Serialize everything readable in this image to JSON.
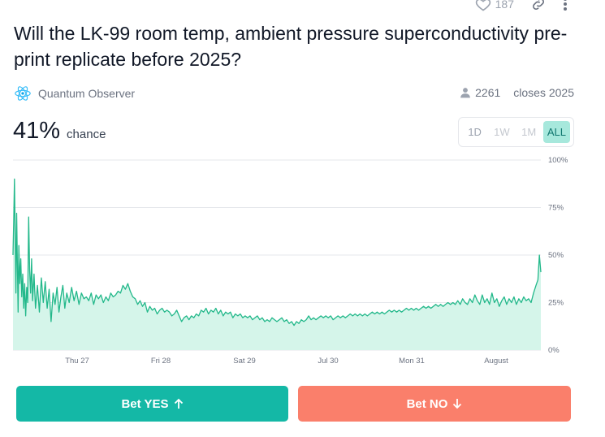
{
  "header": {
    "likes_count": "187",
    "icons": {
      "likes": "heart-icon",
      "share": "link-icon",
      "more": "more-vertical-icon"
    }
  },
  "market": {
    "title": "Will the LK-99 room temp, ambient pressure superconductivity pre-print replicate before 2025?",
    "creator": "Quantum Observer",
    "creator_icon": "atom-icon",
    "traders_count": "2261",
    "closes_text": "closes 2025",
    "probability": "41%",
    "probability_label": "chance"
  },
  "time_ranges": [
    {
      "label": "1D",
      "active": false
    },
    {
      "label": "1W",
      "active": false
    },
    {
      "label": "1M",
      "active": false
    },
    {
      "label": "ALL",
      "active": true
    }
  ],
  "colors": {
    "accent": "#14b8a6",
    "line": "#22b88a",
    "fill": "#d5f5ea",
    "yes_button": "#14b8a6",
    "no_button": "#fa7f6b"
  },
  "chart_data": {
    "type": "area",
    "x_ticks": [
      "Thu 27",
      "Fri 28",
      "Sat 29",
      "Jul 30",
      "Mon 31",
      "August"
    ],
    "y_ticks": [
      "100%",
      "75%",
      "50%",
      "25%",
      "0%"
    ],
    "ylim": [
      0,
      100
    ],
    "xlim": [
      0,
      108
    ],
    "grid": true,
    "series": [
      {
        "points": [
          [
            0,
            50
          ],
          [
            0.15,
            68
          ],
          [
            0.3,
            90
          ],
          [
            0.45,
            60
          ],
          [
            0.6,
            30
          ],
          [
            0.75,
            72
          ],
          [
            0.9,
            45
          ],
          [
            1.05,
            20
          ],
          [
            1.2,
            55
          ],
          [
            1.4,
            35
          ],
          [
            1.6,
            48
          ],
          [
            1.8,
            28
          ],
          [
            2,
            40
          ],
          [
            2.2,
            22
          ],
          [
            2.4,
            35
          ],
          [
            2.6,
            18
          ],
          [
            2.8,
            33
          ],
          [
            3,
            25
          ],
          [
            3.2,
            70
          ],
          [
            3.4,
            42
          ],
          [
            3.6,
            30
          ],
          [
            3.8,
            48
          ],
          [
            4,
            26
          ],
          [
            4.3,
            40
          ],
          [
            4.6,
            22
          ],
          [
            5,
            34
          ],
          [
            5.4,
            20
          ],
          [
            5.8,
            38
          ],
          [
            6.2,
            25
          ],
          [
            6.6,
            36
          ],
          [
            7,
            22
          ],
          [
            7.4,
            32
          ],
          [
            7.8,
            15
          ],
          [
            8.2,
            30
          ],
          [
            8.6,
            24
          ],
          [
            9,
            33
          ],
          [
            9.4,
            20
          ],
          [
            9.8,
            28
          ],
          [
            10.2,
            34
          ],
          [
            10.6,
            22
          ],
          [
            11,
            30
          ],
          [
            11.5,
            25
          ],
          [
            12,
            33
          ],
          [
            12.5,
            26
          ],
          [
            13,
            31
          ],
          [
            13.5,
            24
          ],
          [
            14,
            30
          ],
          [
            14.5,
            27
          ],
          [
            15,
            28
          ],
          [
            15.5,
            26
          ],
          [
            16,
            30
          ],
          [
            16.5,
            24
          ],
          [
            17,
            29
          ],
          [
            17.5,
            27
          ],
          [
            18,
            29
          ],
          [
            18.5,
            25
          ],
          [
            19,
            28
          ],
          [
            19.5,
            26
          ],
          [
            20,
            30
          ],
          [
            20.5,
            28
          ],
          [
            21,
            29
          ],
          [
            21.5,
            31
          ],
          [
            22,
            30
          ],
          [
            22.5,
            34
          ],
          [
            23,
            32
          ],
          [
            23.5,
            35
          ],
          [
            24,
            31
          ],
          [
            24.5,
            28
          ],
          [
            25,
            27
          ],
          [
            25.5,
            24
          ],
          [
            26,
            26
          ],
          [
            26.5,
            23
          ],
          [
            27,
            25
          ],
          [
            27.5,
            20
          ],
          [
            28,
            23
          ],
          [
            28.5,
            21
          ],
          [
            29,
            22
          ],
          [
            29.5,
            19
          ],
          [
            30,
            21
          ],
          [
            30.5,
            22
          ],
          [
            31,
            20
          ],
          [
            31.5,
            21
          ],
          [
            32,
            20
          ],
          [
            32.5,
            18
          ],
          [
            33,
            19
          ],
          [
            33.5,
            21
          ],
          [
            34,
            18
          ],
          [
            34.5,
            15
          ],
          [
            35,
            17
          ],
          [
            35.5,
            18
          ],
          [
            36,
            16
          ],
          [
            36.5,
            18
          ],
          [
            37,
            17
          ],
          [
            37.5,
            19
          ],
          [
            38,
            18
          ],
          [
            38.5,
            21
          ],
          [
            39,
            20
          ],
          [
            39.5,
            22
          ],
          [
            40,
            19
          ],
          [
            40.5,
            21
          ],
          [
            41,
            20
          ],
          [
            41.5,
            22
          ],
          [
            42,
            19
          ],
          [
            42.5,
            21
          ],
          [
            43,
            18
          ],
          [
            43.5,
            20
          ],
          [
            44,
            19
          ],
          [
            44.5,
            20
          ],
          [
            45,
            17
          ],
          [
            45.5,
            19
          ],
          [
            46,
            18
          ],
          [
            46.5,
            19
          ],
          [
            47,
            17
          ],
          [
            47.5,
            18
          ],
          [
            48,
            17
          ],
          [
            48.5,
            18
          ],
          [
            49,
            16
          ],
          [
            49.5,
            17
          ],
          [
            50,
            18
          ],
          [
            50.5,
            16
          ],
          [
            51,
            17
          ],
          [
            51.5,
            15
          ],
          [
            52,
            16
          ],
          [
            52.5,
            15
          ],
          [
            53,
            17
          ],
          [
            53.5,
            16
          ],
          [
            54,
            15
          ],
          [
            54.5,
            16
          ],
          [
            55,
            17
          ],
          [
            55.5,
            15
          ],
          [
            56,
            16
          ],
          [
            56.5,
            14
          ],
          [
            57,
            15
          ],
          [
            57.5,
            13
          ],
          [
            58,
            15
          ],
          [
            58.5,
            14
          ],
          [
            59,
            16
          ],
          [
            59.5,
            15
          ],
          [
            60,
            16
          ],
          [
            60.5,
            18
          ],
          [
            61,
            16
          ],
          [
            61.5,
            17
          ],
          [
            62,
            16
          ],
          [
            62.5,
            17
          ],
          [
            63,
            18
          ],
          [
            63.5,
            17
          ],
          [
            64,
            18
          ],
          [
            64.5,
            17
          ],
          [
            65,
            18
          ],
          [
            65.5,
            16
          ],
          [
            66,
            17
          ],
          [
            66.5,
            18
          ],
          [
            67,
            17
          ],
          [
            67.5,
            18
          ],
          [
            68,
            17
          ],
          [
            68.5,
            18
          ],
          [
            69,
            19
          ],
          [
            69.5,
            18
          ],
          [
            70,
            19
          ],
          [
            70.5,
            18
          ],
          [
            71,
            19
          ],
          [
            71.5,
            18
          ],
          [
            72,
            19
          ],
          [
            72.5,
            18
          ],
          [
            73,
            19
          ],
          [
            73.5,
            20
          ],
          [
            74,
            19
          ],
          [
            74.5,
            20
          ],
          [
            75,
            19
          ],
          [
            75.5,
            20
          ],
          [
            76,
            19
          ],
          [
            76.5,
            20
          ],
          [
            77,
            21
          ],
          [
            77.5,
            20
          ],
          [
            78,
            21
          ],
          [
            78.5,
            20
          ],
          [
            79,
            21
          ],
          [
            79.5,
            20
          ],
          [
            80,
            21
          ],
          [
            80.5,
            22
          ],
          [
            81,
            21
          ],
          [
            81.5,
            22
          ],
          [
            82,
            21
          ],
          [
            82.5,
            22
          ],
          [
            83,
            21
          ],
          [
            83.5,
            22
          ],
          [
            84,
            23
          ],
          [
            84.5,
            22
          ],
          [
            85,
            23
          ],
          [
            85.5,
            22
          ],
          [
            86,
            23
          ],
          [
            86.5,
            24
          ],
          [
            87,
            23
          ],
          [
            87.5,
            24
          ],
          [
            88,
            23
          ],
          [
            88.5,
            24
          ],
          [
            89,
            25
          ],
          [
            89.5,
            24
          ],
          [
            90,
            25
          ],
          [
            90.5,
            24
          ],
          [
            91,
            26
          ],
          [
            91.5,
            24
          ],
          [
            92,
            27
          ],
          [
            92.5,
            25
          ],
          [
            93,
            24
          ],
          [
            93.5,
            27
          ],
          [
            94,
            25
          ],
          [
            94.5,
            29
          ],
          [
            95,
            26
          ],
          [
            95.5,
            24
          ],
          [
            96,
            29
          ],
          [
            96.5,
            25
          ],
          [
            97,
            27
          ],
          [
            97.5,
            24
          ],
          [
            98,
            30
          ],
          [
            98.5,
            25
          ],
          [
            99,
            27
          ],
          [
            99.5,
            23
          ],
          [
            100,
            26
          ],
          [
            100.5,
            28
          ],
          [
            101,
            24
          ],
          [
            101.5,
            27
          ],
          [
            102,
            25
          ],
          [
            102.5,
            28
          ],
          [
            103,
            24
          ],
          [
            103.5,
            27
          ],
          [
            104,
            25
          ],
          [
            104.5,
            28
          ],
          [
            105,
            26
          ],
          [
            105.5,
            27
          ],
          [
            106,
            25
          ],
          [
            106.5,
            30
          ],
          [
            107,
            34
          ],
          [
            107.4,
            37
          ],
          [
            107.7,
            50
          ],
          [
            108,
            41
          ]
        ]
      }
    ]
  },
  "actions": {
    "yes_label": "Bet YES",
    "no_label": "Bet NO",
    "yes_icon": "arrow-up-icon",
    "no_icon": "arrow-down-icon"
  }
}
